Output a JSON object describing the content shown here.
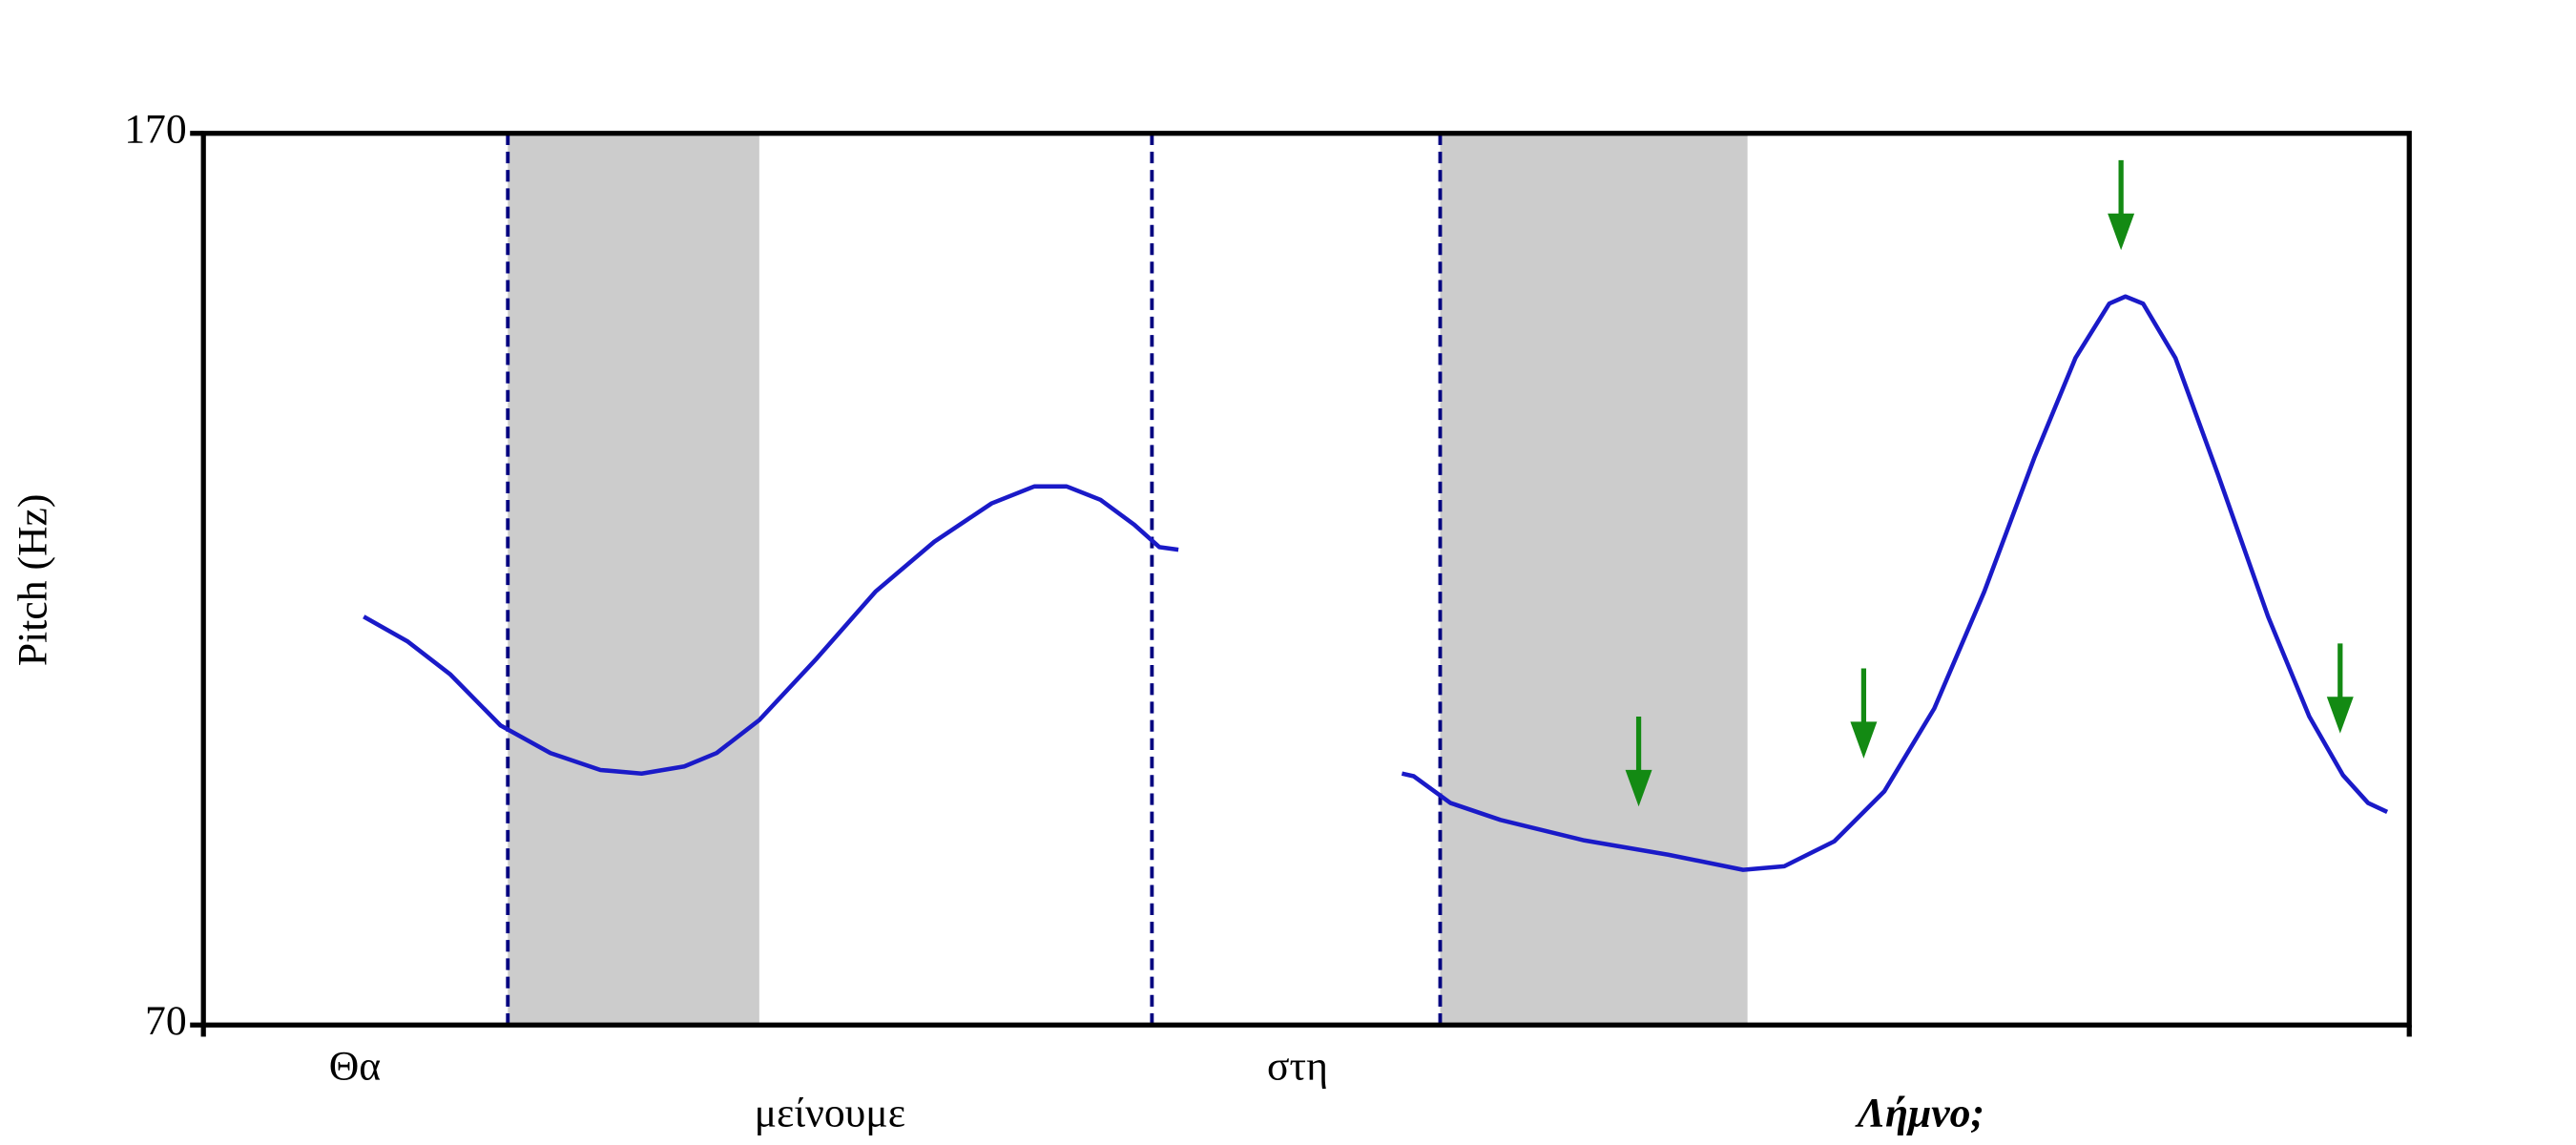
{
  "chart_data": {
    "type": "line",
    "ylabel": "Pitch (Hz)",
    "ylim": [
      70,
      170
    ],
    "yticks": [
      70,
      170
    ],
    "xlim": [
      0,
      1.5
    ],
    "x": [
      0.109,
      0.139,
      0.168,
      0.202,
      0.236,
      0.27,
      0.298,
      0.327,
      0.349,
      0.378,
      0.417,
      0.457,
      0.497,
      0.536,
      0.565,
      0.587,
      0.61,
      0.633,
      0.65,
      0.663,
      null,
      0.815,
      0.823,
      0.848,
      0.882,
      0.939,
      0.996,
      1.047,
      1.075,
      1.109,
      1.143,
      1.177,
      1.211,
      1.245,
      1.273,
      1.296,
      1.307,
      1.319,
      1.341,
      1.37,
      1.404,
      1.432,
      1.455,
      1.472,
      1.485
    ],
    "series": [
      {
        "color": "#1a1ac8",
        "values": [
          115.8,
          113.0,
          109.3,
          103.6,
          100.5,
          98.6,
          98.2,
          99.0,
          100.5,
          104.2,
          111.1,
          118.6,
          124.2,
          128.5,
          130.4,
          130.4,
          128.9,
          126.1,
          123.6,
          123.3,
          null,
          98.2,
          97.9,
          94.9,
          93.0,
          90.7,
          89.1,
          87.4,
          87.8,
          90.6,
          96.2,
          105.5,
          118.6,
          133.6,
          144.8,
          150.9,
          151.7,
          150.9,
          144.8,
          131.7,
          115.8,
          104.6,
          98.0,
          94.9,
          93.9
        ]
      }
    ],
    "shaded_spans": {
      "color": "#cccccc",
      "spans": [
        [
          0.207,
          0.378
        ],
        [
          0.841,
          1.05
        ]
      ]
    },
    "boundaries": {
      "color": "#000080",
      "x": [
        0.207,
        0.645,
        0.841
      ]
    },
    "arrows": {
      "color": "#138a13",
      "x": [
        0.976,
        1.129,
        1.304,
        1.453
      ],
      "y": [
        94.5,
        99.9,
        156.9,
        102.7
      ]
    },
    "words": {
      "labels": [
        "Θα",
        "μείνουμε",
        "στη",
        "Λήμνο;"
      ],
      "x": [
        0.103,
        0.426,
        0.744,
        1.168
      ]
    }
  }
}
